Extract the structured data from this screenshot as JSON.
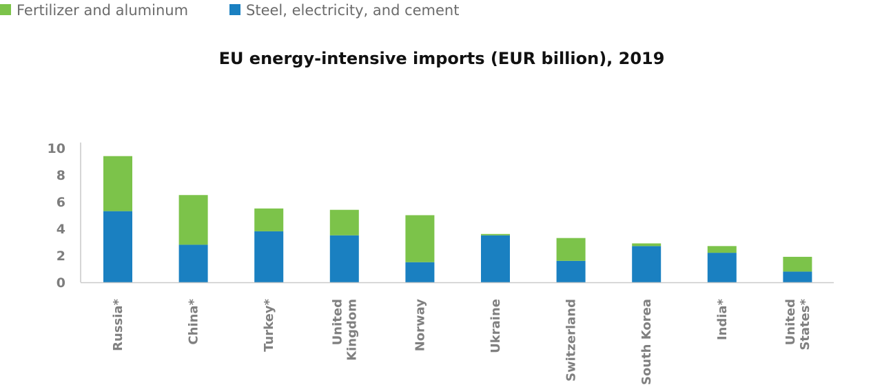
{
  "chart_data": {
    "type": "bar",
    "stacked": true,
    "title": "EU energy-intensive imports (EUR billion), 2019",
    "xlabel": "",
    "ylabel": "",
    "ylim": [
      0,
      10
    ],
    "yticks": [
      "0",
      "2",
      "4",
      "6",
      "8",
      "10"
    ],
    "grid": false,
    "legend_position": "top-left",
    "categories": [
      [
        "Russia*"
      ],
      [
        "China*"
      ],
      [
        "Turkey*"
      ],
      [
        "United",
        "Kingdom"
      ],
      [
        "Norway"
      ],
      [
        "Ukraine"
      ],
      [
        "Switzerland"
      ],
      [
        "South Korea"
      ],
      [
        "India*"
      ],
      [
        "United",
        "States*"
      ]
    ],
    "series": [
      {
        "name": "Steel, electricity, and cement",
        "color": "#1a80c1",
        "values": [
          5.3,
          2.8,
          3.8,
          3.5,
          1.5,
          3.5,
          1.6,
          2.7,
          2.2,
          0.8
        ]
      },
      {
        "name": "Fertilizer and aluminum",
        "color": "#7cc34a",
        "values": [
          4.1,
          3.7,
          1.7,
          1.9,
          3.5,
          0.1,
          1.7,
          0.2,
          0.5,
          1.1
        ]
      }
    ]
  },
  "legend": {
    "items": [
      {
        "label": "Fertilizer and aluminum",
        "color": "#7cc34a"
      },
      {
        "label": "Steel, electricity, and cement",
        "color": "#1a80c1"
      }
    ]
  }
}
